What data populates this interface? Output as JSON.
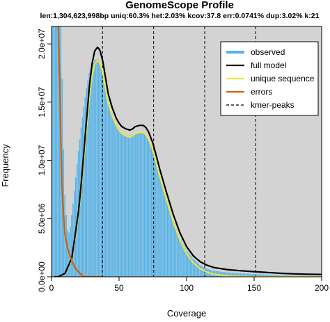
{
  "chart_data": {
    "type": "line",
    "title": "GenomeScope Profile",
    "subtitle": "len:1,304,623,998bp uniq:60.3%  het:2.03% kcov:37.8 err:0.0741%  dup:3.02%  k:21",
    "xlabel": "Coverage",
    "ylabel": "Frequency",
    "xlim": [
      0,
      200
    ],
    "ylim": [
      0,
      21500000
    ],
    "x_ticks": [
      0,
      50,
      100,
      150,
      200
    ],
    "y_ticks": [
      0,
      5000000,
      10000000,
      15000000,
      20000000
    ],
    "y_tick_labels": [
      "0.0e+00",
      "5.0e+06",
      "1.0e+07",
      "1.5e+07",
      "2.0e+07"
    ],
    "background": "#d3d3d3",
    "legend_position": "top-right",
    "kmer_peaks": [
      37.8,
      75.6,
      113.4,
      151.2
    ],
    "series": [
      {
        "name": "observed",
        "style": "bars",
        "color": "#56b4e9",
        "x": [
          1,
          2,
          3,
          4,
          5,
          6,
          7,
          8,
          9,
          10,
          11,
          12,
          13,
          14,
          15,
          16,
          17,
          18,
          19,
          20,
          22,
          24,
          26,
          28,
          30,
          32,
          34,
          35,
          36,
          38,
          40,
          42,
          44,
          46,
          48,
          50,
          52,
          55,
          58,
          60,
          62,
          65,
          68,
          70,
          72,
          75,
          78,
          80,
          85,
          90,
          95,
          100,
          105,
          110,
          115,
          120,
          130,
          140,
          150,
          160,
          170,
          180,
          190,
          200
        ],
        "y": [
          21500000,
          21500000,
          21500000,
          21500000,
          21500000,
          21500000,
          21500000,
          17000000,
          11000000,
          7000000,
          5300000,
          4000000,
          3800000,
          4300000,
          5300000,
          6300000,
          7400000,
          8500000,
          9700000,
          10800000,
          12800000,
          14600000,
          16200000,
          17500000,
          18200000,
          18600000,
          18700000,
          18650000,
          18400000,
          17700000,
          16500000,
          15300000,
          14300000,
          13600000,
          13000000,
          12700000,
          12400000,
          12100000,
          12100000,
          12200000,
          12300000,
          12400000,
          12350000,
          12100000,
          11700000,
          10800000,
          9700000,
          8800000,
          6800000,
          4900000,
          3400000,
          2300000,
          1550000,
          1000000,
          700000,
          520000,
          380000,
          300000,
          240000,
          180000,
          130000,
          100000,
          80000,
          60000
        ]
      },
      {
        "name": "full model",
        "color": "#000000",
        "x": [
          2,
          5,
          10,
          15,
          20,
          22,
          25,
          28,
          30,
          32,
          34,
          35,
          36,
          38,
          40,
          42,
          45,
          48,
          50,
          52,
          55,
          58,
          60,
          62,
          65,
          68,
          70,
          72,
          75,
          78,
          80,
          85,
          90,
          95,
          100,
          105,
          110,
          115,
          120,
          130,
          140,
          150,
          160,
          170,
          180,
          190,
          200
        ],
        "y": [
          0,
          0,
          300000,
          1600000,
          5600000,
          8000000,
          12200000,
          16300000,
          18300000,
          19400000,
          19700000,
          19600000,
          19400000,
          18500000,
          17100000,
          15700000,
          14500000,
          13600000,
          13200000,
          12900000,
          12700000,
          12600000,
          12700000,
          12900000,
          13000000,
          13000000,
          12800000,
          12400000,
          11500000,
          10200000,
          9300000,
          7300000,
          5400000,
          3800000,
          2600000,
          1800000,
          1300000,
          1000000,
          800000,
          620000,
          520000,
          440000,
          370000,
          300000,
          250000,
          220000,
          200000
        ]
      },
      {
        "name": "unique sequence",
        "color": "#f0e442",
        "x": [
          2,
          5,
          10,
          15,
          20,
          22,
          25,
          28,
          30,
          32,
          34,
          35,
          36,
          38,
          40,
          42,
          45,
          48,
          50,
          52,
          55,
          58,
          60,
          62,
          65,
          68,
          70,
          72,
          75,
          78,
          80,
          85,
          90,
          95,
          100,
          105,
          110,
          115,
          120,
          130,
          140,
          150,
          160,
          170,
          180,
          190,
          200
        ],
        "y": [
          0,
          0,
          280000,
          1500000,
          5300000,
          7600000,
          11500000,
          15400000,
          17300000,
          18300000,
          18600000,
          18500000,
          18300000,
          17500000,
          16200000,
          14900000,
          13800000,
          13000000,
          12600000,
          12300000,
          12100000,
          12000000,
          12100000,
          12300000,
          12400000,
          12400000,
          12200000,
          11800000,
          10900000,
          9600000,
          8700000,
          6700000,
          4800000,
          3200000,
          2000000,
          1200000,
          700000,
          400000,
          220000,
          70000,
          20000,
          5000,
          0,
          0,
          0,
          0,
          0
        ]
      },
      {
        "name": "errors",
        "color": "#d55e00",
        "x": [
          3,
          4,
          5,
          6,
          7,
          8,
          9,
          10,
          12,
          14,
          16,
          18,
          20,
          22,
          24,
          28,
          32,
          37
        ],
        "y": [
          21500000,
          21500000,
          21500000,
          17000000,
          11000000,
          7000000,
          5000000,
          3600000,
          2400000,
          1700000,
          1100000,
          700000,
          420000,
          200000,
          0,
          0,
          0,
          0
        ]
      },
      {
        "name": "kmer-peaks",
        "color": "#000000",
        "style": "dashed"
      }
    ]
  }
}
